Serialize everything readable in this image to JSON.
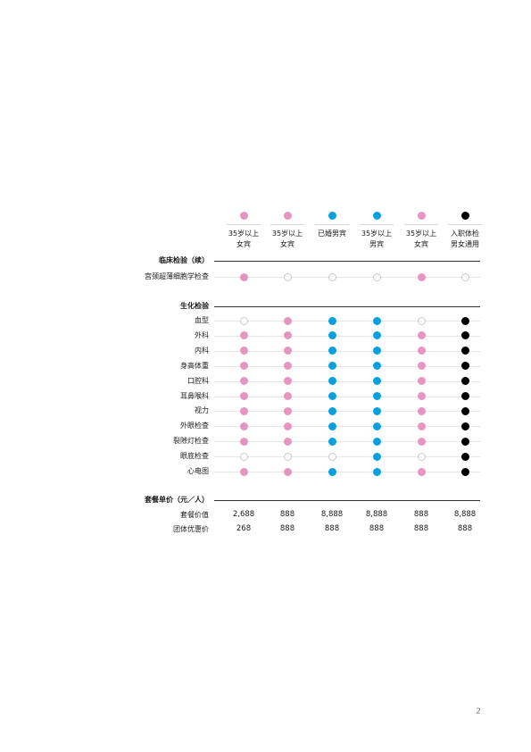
{
  "colors": {
    "pink": "#e695c1",
    "blue": "#0aa0de",
    "black": "#000000",
    "empty": "#ffffff",
    "empty_border": "#c8c8c8"
  },
  "columns": [
    {
      "color": "pink",
      "line1": "35岁以上",
      "line2": "女宾"
    },
    {
      "color": "pink",
      "line1": "35岁以上",
      "line2": "女宾"
    },
    {
      "color": "blue",
      "line1": "已婚男宾",
      "line2": ""
    },
    {
      "color": "blue",
      "line1": "35岁以上",
      "line2": "男宾"
    },
    {
      "color": "pink",
      "line1": "35岁以上",
      "line2": "女宾"
    },
    {
      "color": "black",
      "line1": "入职体检",
      "line2": "男女通用"
    }
  ],
  "sections": {
    "clinical": {
      "title": "临床检验（续）",
      "rows": [
        {
          "label": "宫颈超薄细胞学检查",
          "marks": [
            1,
            0,
            0,
            0,
            1,
            0
          ]
        }
      ]
    },
    "biochem": {
      "title": "生化检验",
      "rows": [
        {
          "label": "血型",
          "marks": [
            0,
            1,
            1,
            1,
            0,
            1
          ]
        },
        {
          "label": "外科",
          "marks": [
            1,
            1,
            1,
            1,
            1,
            1
          ]
        },
        {
          "label": "内科",
          "marks": [
            1,
            1,
            1,
            1,
            1,
            1
          ]
        },
        {
          "label": "身高体重",
          "marks": [
            1,
            1,
            1,
            1,
            1,
            1
          ]
        },
        {
          "label": "口腔科",
          "marks": [
            1,
            1,
            1,
            1,
            1,
            1
          ]
        },
        {
          "label": "耳鼻喉科",
          "marks": [
            1,
            1,
            1,
            1,
            1,
            1
          ]
        },
        {
          "label": "视力",
          "marks": [
            1,
            1,
            1,
            1,
            1,
            1
          ]
        },
        {
          "label": "外眼检查",
          "marks": [
            1,
            1,
            1,
            1,
            1,
            1
          ]
        },
        {
          "label": "裂隙灯检查",
          "marks": [
            1,
            1,
            1,
            1,
            1,
            1
          ]
        },
        {
          "label": "眼底检查",
          "marks": [
            0,
            0,
            0,
            1,
            0,
            1
          ]
        },
        {
          "label": "心电图",
          "marks": [
            1,
            1,
            1,
            1,
            1,
            1
          ]
        }
      ]
    },
    "pricing": {
      "title": "套餐单价（元／人）",
      "rows": [
        {
          "label": "套餐价值",
          "values": [
            "2,688",
            "888",
            "8,888",
            "8,888",
            "888",
            "8,888"
          ]
        },
        {
          "label": "团体优惠价",
          "values": [
            "268",
            "888",
            "888",
            "888",
            "888",
            "888"
          ]
        }
      ]
    }
  },
  "page_number": "2"
}
